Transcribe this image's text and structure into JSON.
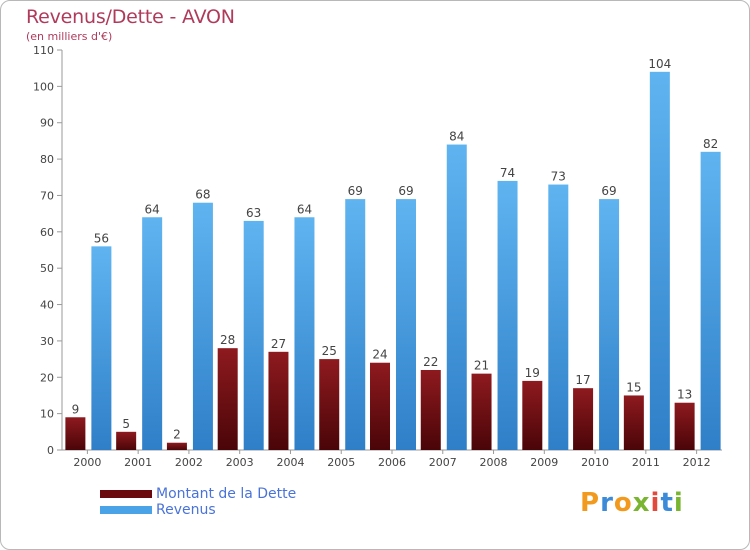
{
  "header": {
    "title": "Revenus/Dette - AVON",
    "subtitle": "(en milliers d'€)"
  },
  "legend": {
    "items": [
      {
        "label": "Montant de la Dette",
        "color": "#6b0a0e"
      },
      {
        "label": "Revenus",
        "color": "#4aa3e6"
      }
    ]
  },
  "logo": {
    "text": "Proxiti",
    "letters": [
      {
        "ch": "P",
        "color": "#f29a1d"
      },
      {
        "ch": "r",
        "color": "#3b8bd8"
      },
      {
        "ch": "o",
        "color": "#f29a1d"
      },
      {
        "ch": "x",
        "color": "#79b530"
      },
      {
        "ch": "i",
        "color": "#e14a3c"
      },
      {
        "ch": "t",
        "color": "#3b8bd8"
      },
      {
        "ch": "i",
        "color": "#79b530"
      }
    ]
  },
  "chart_data": {
    "type": "bar",
    "title": "Revenus/Dette - AVON",
    "subtitle": "(en milliers d'€)",
    "categories": [
      "2000",
      "2001",
      "2002",
      "2003",
      "2004",
      "2005",
      "2006",
      "2007",
      "2008",
      "2009",
      "2010",
      "2011",
      "2012"
    ],
    "series": [
      {
        "name": "Montant de la Dette",
        "color": "#6b0a0e",
        "values": [
          9,
          5,
          2,
          28,
          27,
          25,
          24,
          22,
          21,
          19,
          17,
          15,
          13
        ]
      },
      {
        "name": "Revenus",
        "color": "#4aa3e6",
        "values": [
          56,
          64,
          68,
          63,
          64,
          69,
          69,
          84,
          74,
          73,
          69,
          104,
          82
        ]
      }
    ],
    "ylim": [
      0,
      110
    ],
    "yticks": [
      0,
      10,
      20,
      30,
      40,
      50,
      60,
      70,
      80,
      90,
      100,
      110
    ],
    "grid": false,
    "legend_position": "bottom-left"
  }
}
